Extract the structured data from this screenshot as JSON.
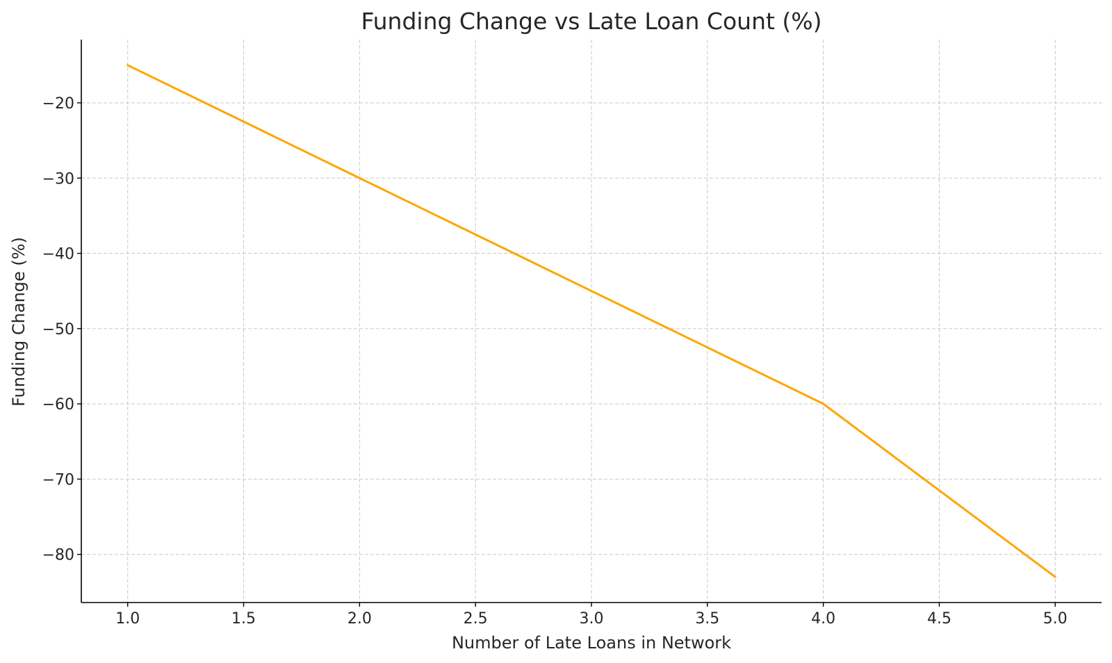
{
  "chart_data": {
    "type": "line",
    "title": "Funding Change vs Late Loan Count (%)",
    "xlabel": "Number of Late Loans in Network",
    "ylabel": "Funding Change (%)",
    "x": [
      1,
      2,
      3,
      4,
      5
    ],
    "series": [
      {
        "values": [
          -15,
          -30,
          -45,
          -60,
          -83
        ],
        "color": "#FFA500"
      }
    ],
    "xlim": [
      0.8,
      5.2
    ],
    "ylim": [
      -86.4,
      -11.6
    ],
    "xticks": [
      1.0,
      1.5,
      2.0,
      2.5,
      3.0,
      3.5,
      4.0,
      4.5,
      5.0
    ],
    "xtick_labels": [
      "1.0",
      "1.5",
      "2.0",
      "2.5",
      "3.0",
      "3.5",
      "4.0",
      "4.5",
      "5.0"
    ],
    "yticks": [
      -20,
      -30,
      -40,
      -50,
      -60,
      -70,
      -80
    ],
    "ytick_labels": [
      "−20",
      "−30",
      "−40",
      "−50",
      "−60",
      "−70",
      "−80"
    ],
    "grid": true,
    "legend": false
  }
}
